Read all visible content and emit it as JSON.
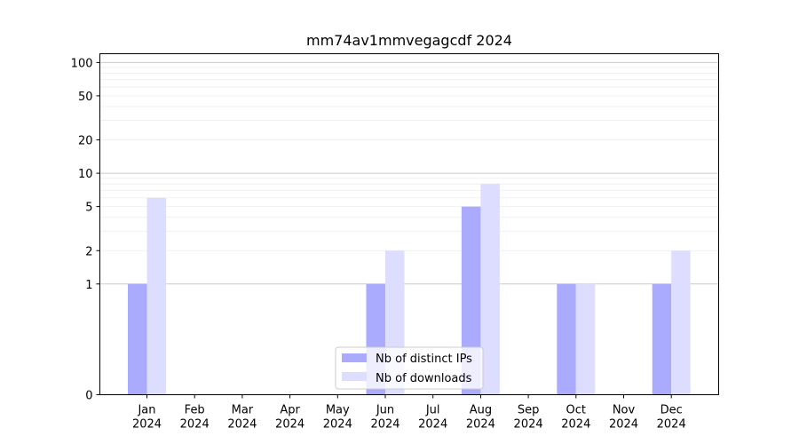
{
  "chart_data": {
    "type": "bar",
    "title": "mm74av1mmvegagcdf 2024",
    "xlabel": "",
    "ylabel": "",
    "yscale": "symlog",
    "ylim": [
      0,
      120
    ],
    "yticks": [
      0,
      1,
      2,
      5,
      10,
      20,
      50,
      100
    ],
    "categories": [
      "Jan\n2024",
      "Feb\n2024",
      "Mar\n2024",
      "Apr\n2024",
      "May\n2024",
      "Jun\n2024",
      "Jul\n2024",
      "Aug\n2024",
      "Sep\n2024",
      "Oct\n2024",
      "Nov\n2024",
      "Dec\n2024"
    ],
    "series": [
      {
        "name": "Nb of distinct IPs",
        "color": "#aaaaff",
        "values": [
          1,
          0,
          0,
          0,
          0,
          1,
          0,
          5,
          0,
          1,
          0,
          1
        ]
      },
      {
        "name": "Nb of downloads",
        "color": "#ddddff",
        "values": [
          6,
          0,
          0,
          0,
          0,
          2,
          0,
          8,
          0,
          1,
          0,
          2
        ]
      }
    ],
    "grid": true,
    "legend": "lower center"
  }
}
